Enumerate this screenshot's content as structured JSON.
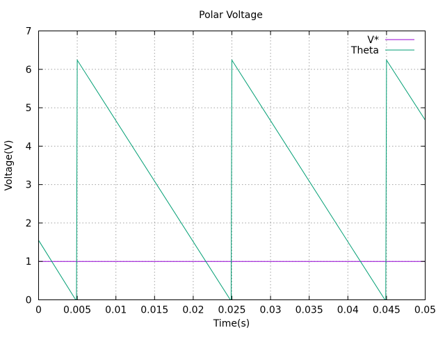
{
  "chart_data": {
    "type": "line",
    "title": "Polar Voltage",
    "xlabel": "Time(s)",
    "ylabel": "Voltage(V)",
    "xlim": [
      0,
      0.05
    ],
    "ylim": [
      0,
      7
    ],
    "x_ticks": [
      "0",
      "0.005",
      "0.01",
      "0.015",
      "0.02",
      "0.025",
      "0.03",
      "0.035",
      "0.04",
      "0.045",
      "0.05"
    ],
    "x_tick_values": [
      0,
      0.005,
      0.01,
      0.015,
      0.02,
      0.025,
      0.03,
      0.035,
      0.04,
      0.045,
      0.05
    ],
    "y_ticks": [
      "0",
      "1",
      "2",
      "3",
      "4",
      "5",
      "6",
      "7"
    ],
    "y_tick_values": [
      0,
      1,
      2,
      3,
      4,
      5,
      6,
      7
    ],
    "grid": true,
    "legend_position": "top-right",
    "series": [
      {
        "name": "V*",
        "color": "#9400d3",
        "x": [
          0,
          0.05
        ],
        "y": [
          1.0,
          1.0
        ]
      },
      {
        "name": "Theta",
        "color": "#009e73",
        "x": [
          0,
          0.0048,
          0.0049,
          0.005,
          0.0248,
          0.0249,
          0.025,
          0.0448,
          0.0449,
          0.045,
          0.05
        ],
        "y": [
          1.55,
          0.0,
          0.0,
          6.24,
          0.0,
          0.0,
          6.24,
          0.0,
          0.0,
          6.24,
          4.68
        ]
      }
    ]
  }
}
